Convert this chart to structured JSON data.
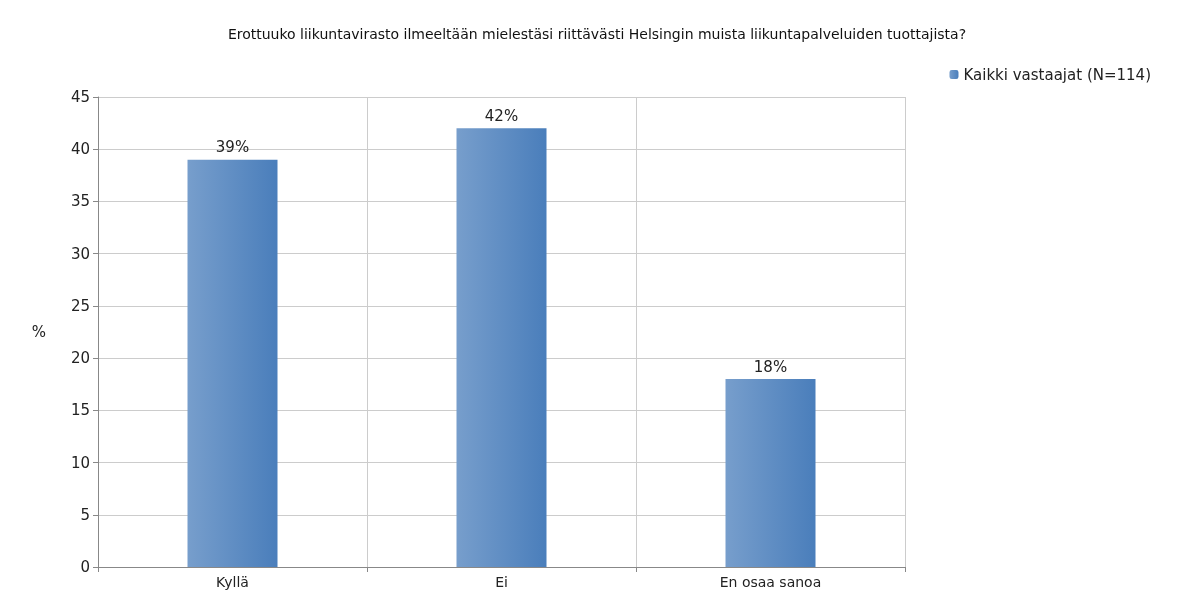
{
  "chart_data": {
    "type": "bar",
    "title": "Erottuuko liikuntavirasto ilmeeltään mielestäsi riittävästi Helsingin muista liikuntapalveluiden tuottajista?",
    "ylabel": "%",
    "categories": [
      "Kyllä",
      "Ei",
      "En osaa sanoa"
    ],
    "series": [
      {
        "name": "Kaikki vastaajat (N=114)",
        "color": "#4a7ebb",
        "values": [
          39,
          42,
          18
        ],
        "value_labels": [
          "39%",
          "42%",
          "18%"
        ]
      }
    ],
    "ylim": [
      0,
      45
    ],
    "yticks": [
      0,
      5,
      10,
      15,
      20,
      25,
      30,
      35,
      40,
      45
    ],
    "grid": true,
    "legend": "top right"
  }
}
